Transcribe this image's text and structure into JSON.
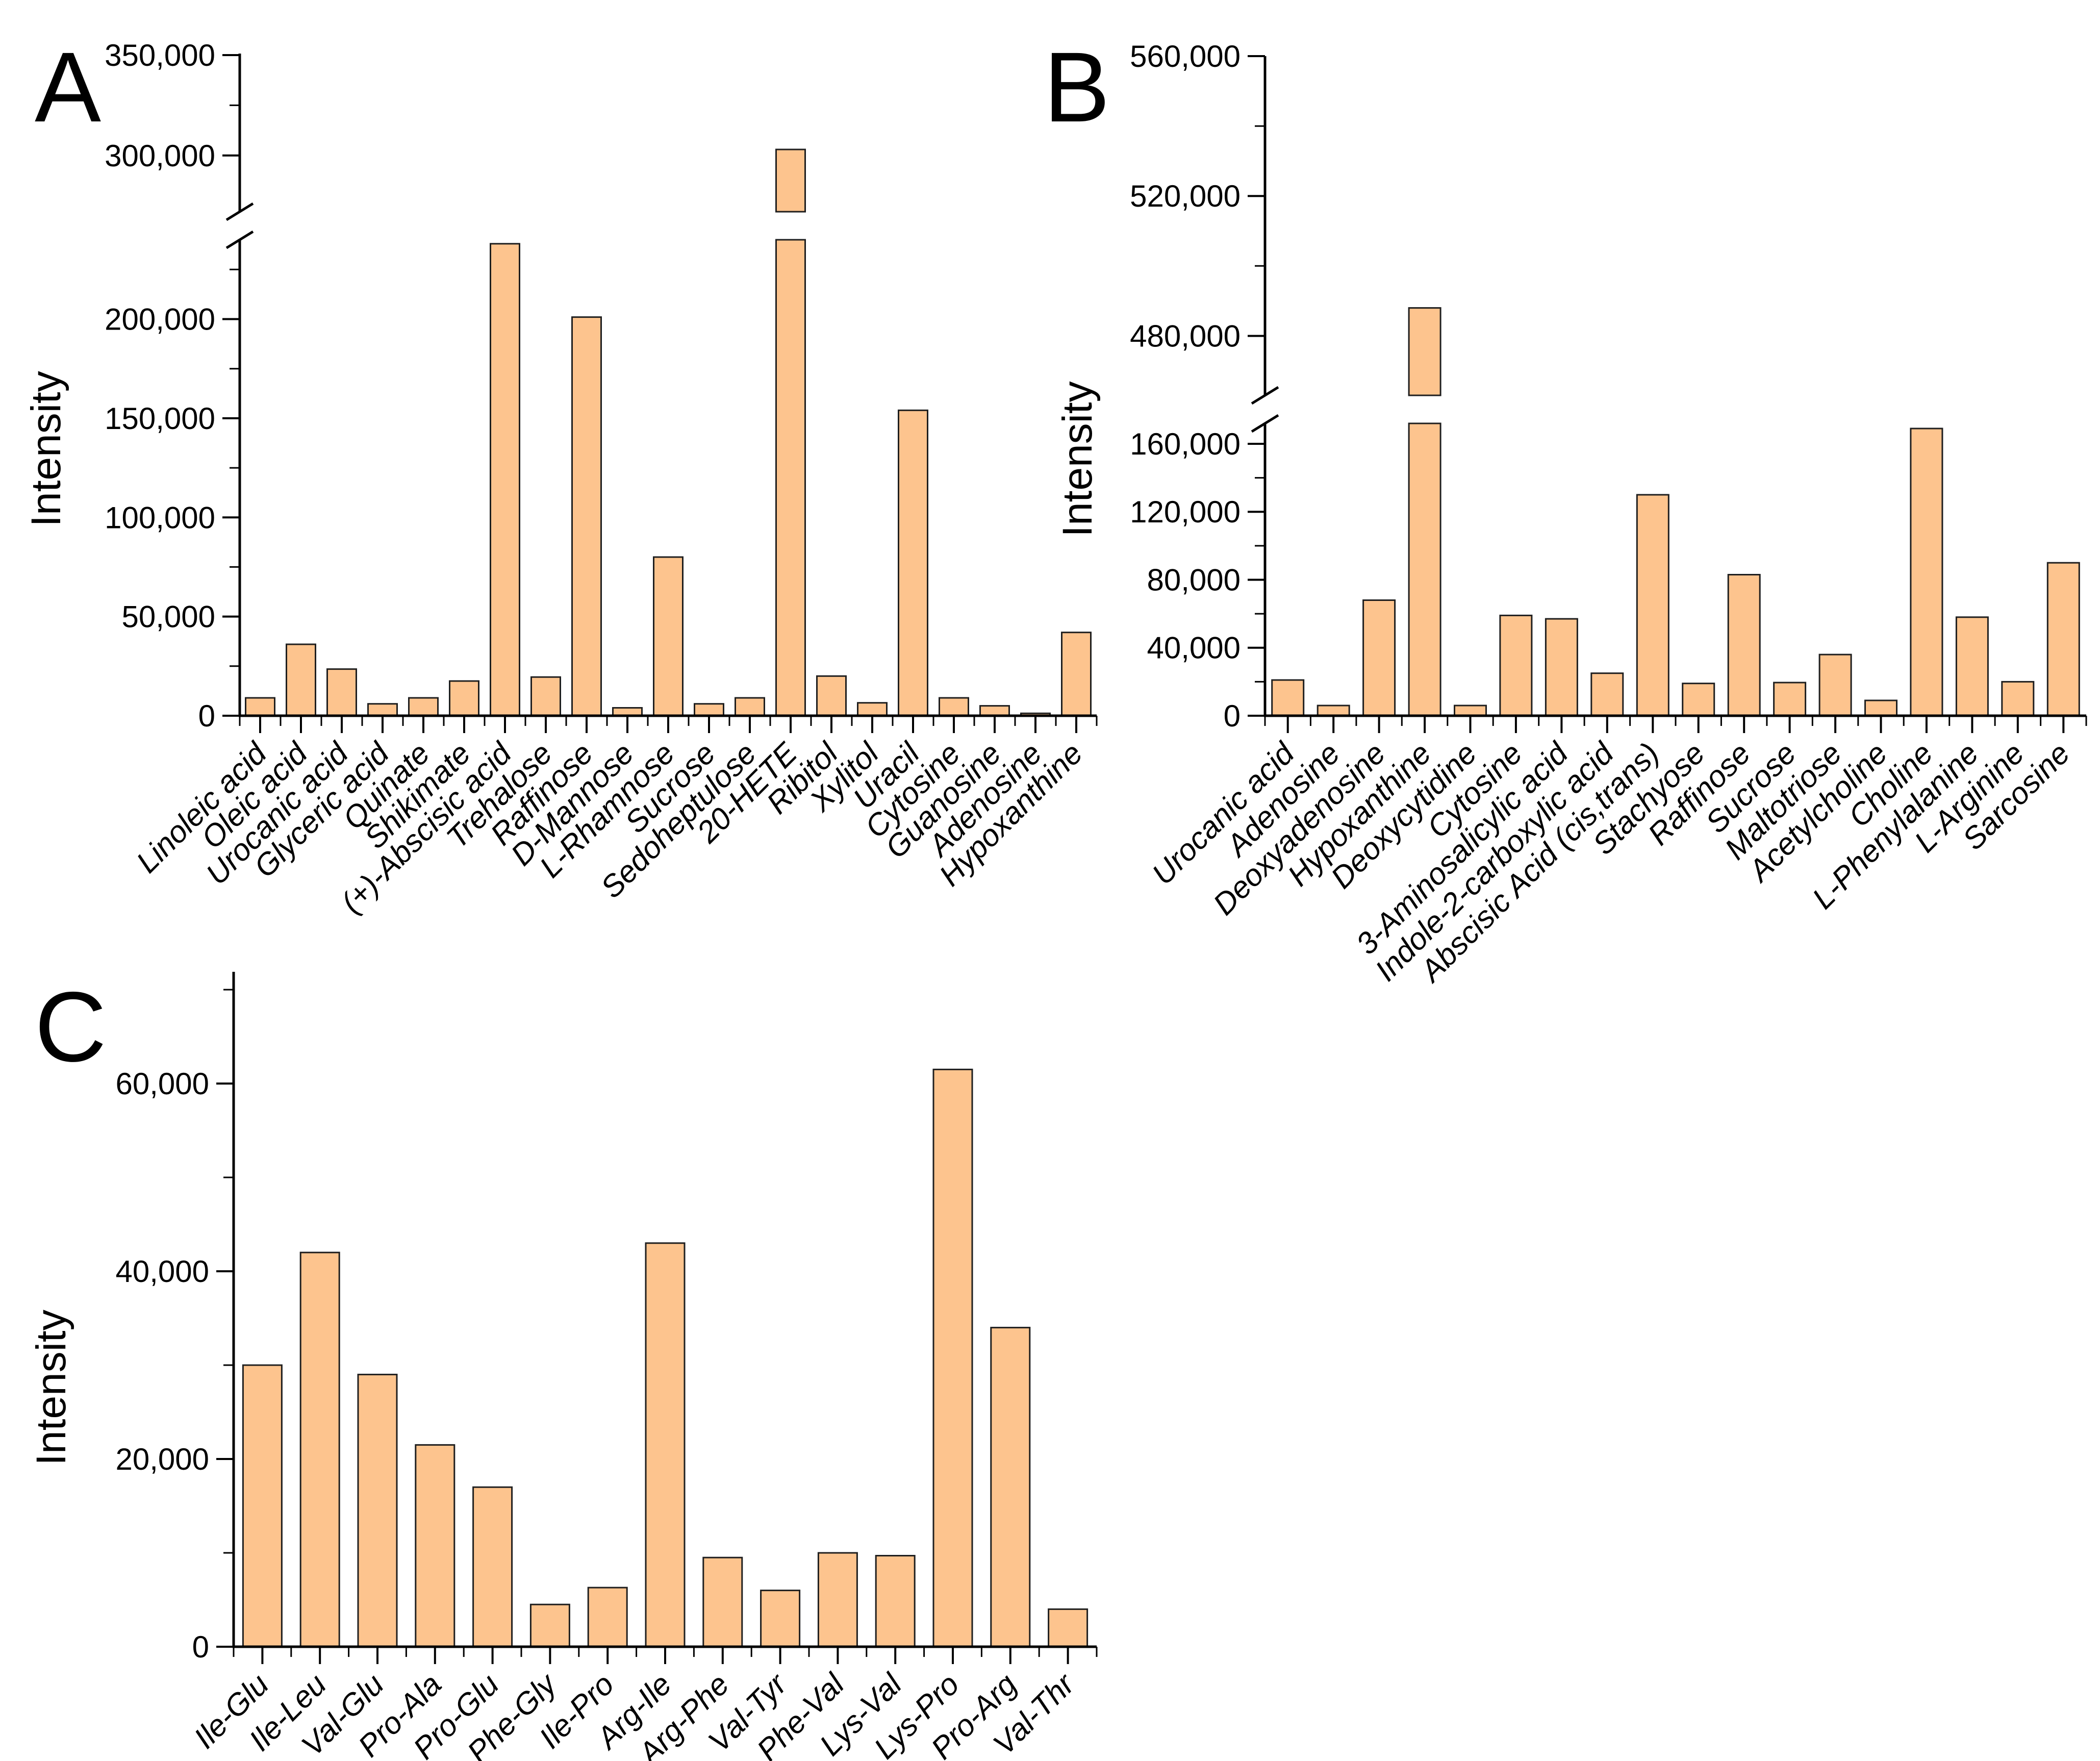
{
  "figure": {
    "background": "#ffffff",
    "ylabel_text": "Intensity"
  },
  "colors": {
    "bar_fill": "#FDC48E",
    "bar_stroke": "#1F1F1F",
    "axis": "#000000",
    "text": "#000000"
  },
  "chart_data": [
    {
      "id": "A",
      "panel_label": "A",
      "type": "bar",
      "title": "",
      "xlabel": "",
      "ylabel": "Intensity",
      "legend": "none",
      "grid": false,
      "axis_break": {
        "from": 240000,
        "to": 272000
      },
      "ylim_below_break": [
        0,
        240000
      ],
      "ylim_above_break": [
        272000,
        350000
      ],
      "yticks_major": [
        0,
        50000,
        100000,
        150000,
        200000,
        300000,
        350000
      ],
      "yticks_minor": [
        25000,
        75000,
        125000,
        175000,
        225000,
        325000
      ],
      "categories": [
        "Linoleic acid",
        "Oleic acid",
        "Urocanic acid",
        "Glyceric acid",
        "Quinate",
        "Shikimate",
        "(+)-Abscisic acid",
        "Trehalose",
        "Raffinose",
        "D-Mannose",
        "L-Rhamnose",
        "Sucrose",
        "Sedoheptulose",
        "20-HETE",
        "Ribitol",
        "Xylitol",
        "Uracil",
        "Cytosine",
        "Guanosine",
        "Adenosine",
        "Hypoxanthine"
      ],
      "values": [
        9000,
        36000,
        23500,
        6000,
        9000,
        17500,
        238000,
        19500,
        201000,
        4000,
        80000,
        6000,
        9000,
        303000,
        20000,
        6500,
        154000,
        9000,
        5000,
        1200,
        42000
      ]
    },
    {
      "id": "B",
      "panel_label": "B",
      "type": "bar",
      "title": "",
      "xlabel": "",
      "ylabel": "Intensity",
      "legend": "none",
      "grid": false,
      "axis_break": {
        "from": 172000,
        "to": 463000
      },
      "ylim_below_break": [
        0,
        172000
      ],
      "ylim_above_break": [
        463000,
        560000
      ],
      "yticks_major": [
        0,
        40000,
        80000,
        120000,
        160000,
        480000,
        520000,
        560000
      ],
      "yticks_minor": [
        20000,
        60000,
        100000,
        140000,
        500000,
        540000
      ],
      "categories": [
        "Urocanic acid",
        "Adenosine",
        "Deoxyadenosine",
        "Hypoxanthine",
        "Deoxycytidine",
        "Cytosine",
        "3-Aminosalicylic acid",
        "Indole-2-carboxylic acid",
        "Abscisic Acid (cis,trans)",
        "Stachyose",
        "Raffinose",
        "Sucrose",
        "Maltotriose",
        "Acetylcholine",
        "Choline",
        "L-Phenylalanine",
        "L-Arginine",
        "Sarcosine"
      ],
      "values": [
        21000,
        6000,
        68000,
        488000,
        6000,
        59000,
        57000,
        25000,
        130000,
        19000,
        83000,
        19500,
        36000,
        9000,
        169000,
        58000,
        20000,
        90000
      ]
    },
    {
      "id": "C",
      "panel_label": "C",
      "type": "bar",
      "title": "",
      "xlabel": "",
      "ylabel": "Intensity",
      "legend": "none",
      "grid": false,
      "axis_break": null,
      "ylim": [
        0,
        72000
      ],
      "yticks_major": [
        0,
        20000,
        40000,
        60000
      ],
      "yticks_minor": [
        10000,
        30000,
        50000,
        70000
      ],
      "categories": [
        "Ile-Glu",
        "Ile-Leu",
        "Val-Glu",
        "Pro-Ala",
        "Pro-Glu",
        "Phe-Gly",
        "Ile-Pro",
        "Arg-Ile",
        "Arg-Phe",
        "Val-Tyr",
        "Phe-Val",
        "Lys-Val",
        "Lys-Pro",
        "Pro-Arg",
        "Val-Thr"
      ],
      "values": [
        30000,
        42000,
        29000,
        21500,
        17000,
        4500,
        6300,
        43000,
        9500,
        6000,
        10000,
        9700,
        61500,
        34000,
        4000
      ]
    }
  ]
}
